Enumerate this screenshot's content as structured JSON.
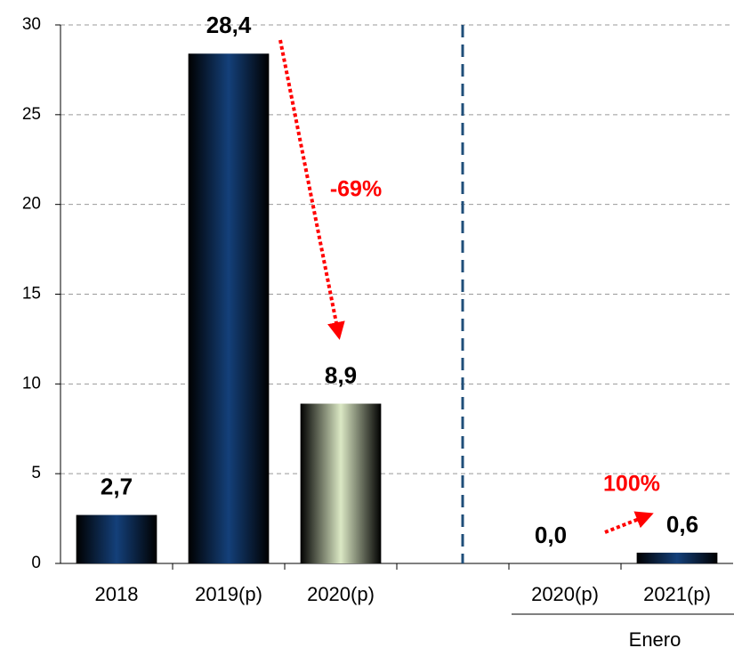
{
  "chart_data": {
    "type": "bar",
    "categories": [
      "2018",
      "2019(p)",
      "2020(p)",
      null,
      "2020(p)",
      "2021(p)"
    ],
    "values": [
      2.7,
      28.4,
      8.9,
      null,
      0.0,
      0.6
    ],
    "value_labels": [
      "2,7",
      "28,4",
      "8,9",
      null,
      "0,0",
      "0,6"
    ],
    "colors": [
      "#14407a",
      "#14407a",
      "#dbe8c4",
      null,
      "#14407a",
      "#14407a"
    ],
    "ylim": [
      0,
      30
    ],
    "yticks": [
      0,
      5,
      10,
      15,
      20,
      25,
      30
    ],
    "grid": true,
    "group_label": "Enero",
    "annotations": [
      "-69%",
      "100%"
    ]
  }
}
